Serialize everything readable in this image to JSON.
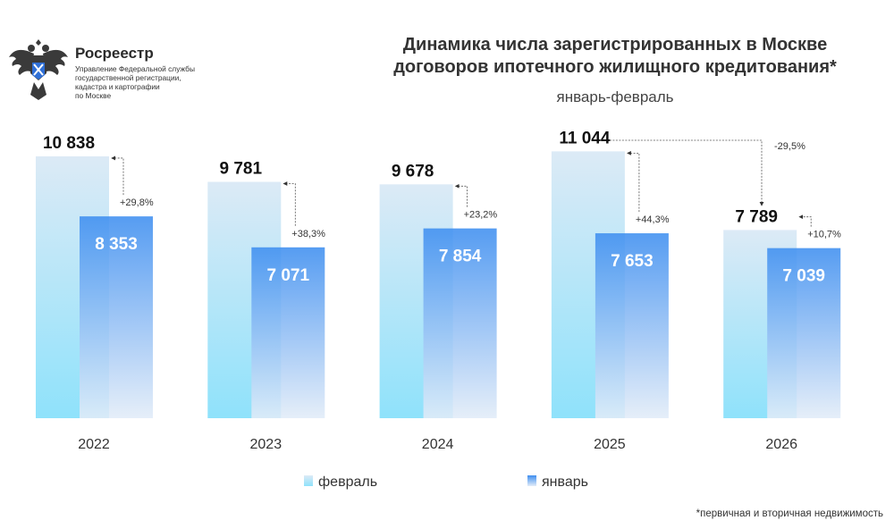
{
  "logo": {
    "brand": "Росреестр",
    "subtitle_lines": [
      "Управление Федеральной службы",
      "государственной регистрации,",
      "кадастра и картографии",
      "по Москве"
    ]
  },
  "title_lines": [
    "Динамика числа зарегистрированных в Москве",
    "договоров ипотечного жилищного кредитования*"
  ],
  "subtitle": "январь-февраль",
  "footnote": "*первичная и вторичная недвижимость",
  "colors": {
    "feb_top": "#dceaf6",
    "feb_bottom": "#8fe2fb",
    "jan_top": "#3f8ff0",
    "jan_bottom": "#e2ecf8"
  },
  "chart_data": {
    "type": "bar",
    "categories": [
      "2022",
      "2023",
      "2024",
      "2025",
      "2026"
    ],
    "series": [
      {
        "name": "февраль",
        "values": [
          10838,
          9781,
          9678,
          11044,
          7789
        ],
        "labels": [
          "10 838",
          "9 781",
          "9 678",
          "11 044",
          "7 789"
        ]
      },
      {
        "name": "январь",
        "values": [
          8353,
          7071,
          7854,
          7653,
          7039
        ],
        "labels": [
          "8 353",
          "7 071",
          "7 854",
          "7 653",
          "7 039"
        ]
      }
    ],
    "changes": [
      "+29,8%",
      "+38,3%",
      "+23,2%",
      "+44,3%",
      "+10,7%"
    ],
    "yoy_change": {
      "from": "2025",
      "to": "2026",
      "label": "-29,5%"
    },
    "legend": [
      "февраль",
      "январь"
    ],
    "legend_position": "bottom",
    "grid": false
  }
}
